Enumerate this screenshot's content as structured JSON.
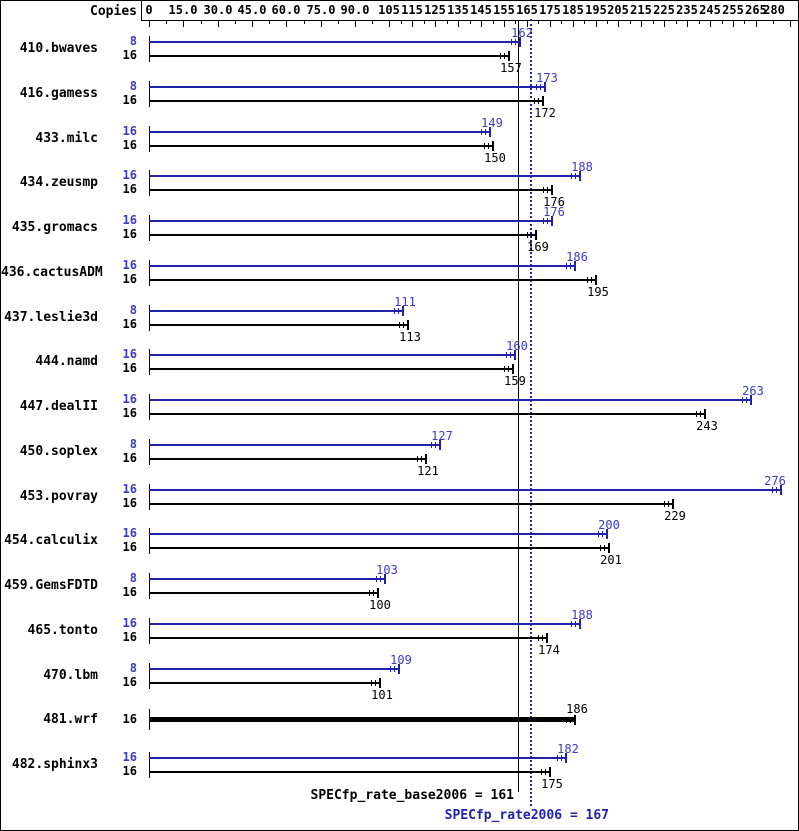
{
  "header": {
    "copies_label": "Copies"
  },
  "colors": {
    "peak_bar": "#2222a8",
    "peak_text": "#3c3cc0",
    "base_bar": "#000000",
    "base_text": "#000000",
    "background": "#ffffff"
  },
  "chart_data": {
    "type": "bar",
    "orientation": "horizontal",
    "grid": false,
    "xlim": [
      0,
      284
    ],
    "axis_ticks": [
      {
        "v": 0,
        "label": "0"
      },
      {
        "v": 15,
        "label": "15.0"
      },
      {
        "v": 30,
        "label": "30.0"
      },
      {
        "v": 45,
        "label": "45.0"
      },
      {
        "v": 60,
        "label": "60.0"
      },
      {
        "v": 75,
        "label": "75.0"
      },
      {
        "v": 90,
        "label": "90.0"
      },
      {
        "v": 105,
        "label": "105"
      },
      {
        "v": 115,
        "label": "115"
      },
      {
        "v": 125,
        "label": "125"
      },
      {
        "v": 135,
        "label": "135"
      },
      {
        "v": 145,
        "label": "145"
      },
      {
        "v": 155,
        "label": "155"
      },
      {
        "v": 165,
        "label": "165"
      },
      {
        "v": 175,
        "label": "175"
      },
      {
        "v": 185,
        "label": "185"
      },
      {
        "v": 195,
        "label": "195"
      },
      {
        "v": 205,
        "label": "205"
      },
      {
        "v": 215,
        "label": "215"
      },
      {
        "v": 225,
        "label": "225"
      },
      {
        "v": 235,
        "label": "235"
      },
      {
        "v": 245,
        "label": "245"
      },
      {
        "v": 255,
        "label": "255"
      },
      {
        "v": 265,
        "label": "265"
      },
      {
        "v": 280,
        "label": "280"
      }
    ],
    "benchmarks": [
      {
        "name": "410.bwaves",
        "results": [
          {
            "series": "peak",
            "copies": "8",
            "value": 162
          },
          {
            "series": "base",
            "copies": "16",
            "value": 157
          }
        ]
      },
      {
        "name": "416.gamess",
        "results": [
          {
            "series": "peak",
            "copies": "8",
            "value": 173
          },
          {
            "series": "base",
            "copies": "16",
            "value": 172
          }
        ]
      },
      {
        "name": "433.milc",
        "results": [
          {
            "series": "peak",
            "copies": "16",
            "value": 149
          },
          {
            "series": "base",
            "copies": "16",
            "value": 150
          }
        ]
      },
      {
        "name": "434.zeusmp",
        "results": [
          {
            "series": "peak",
            "copies": "16",
            "value": 188
          },
          {
            "series": "base",
            "copies": "16",
            "value": 176
          }
        ]
      },
      {
        "name": "435.gromacs",
        "results": [
          {
            "series": "peak",
            "copies": "16",
            "value": 176
          },
          {
            "series": "base",
            "copies": "16",
            "value": 169
          }
        ]
      },
      {
        "name": "436.cactusADM",
        "results": [
          {
            "series": "peak",
            "copies": "16",
            "value": 186
          },
          {
            "series": "base",
            "copies": "16",
            "value": 195
          }
        ]
      },
      {
        "name": "437.leslie3d",
        "results": [
          {
            "series": "peak",
            "copies": "8",
            "value": 111
          },
          {
            "series": "base",
            "copies": "16",
            "value": 113
          }
        ]
      },
      {
        "name": "444.namd",
        "results": [
          {
            "series": "peak",
            "copies": "16",
            "value": 160
          },
          {
            "series": "base",
            "copies": "16",
            "value": 159
          }
        ]
      },
      {
        "name": "447.dealII",
        "results": [
          {
            "series": "peak",
            "copies": "16",
            "value": 263
          },
          {
            "series": "base",
            "copies": "16",
            "value": 243
          }
        ]
      },
      {
        "name": "450.soplex",
        "results": [
          {
            "series": "peak",
            "copies": "8",
            "value": 127
          },
          {
            "series": "base",
            "copies": "16",
            "value": 121
          }
        ]
      },
      {
        "name": "453.povray",
        "results": [
          {
            "series": "peak",
            "copies": "16",
            "value": 276
          },
          {
            "series": "base",
            "copies": "16",
            "value": 229
          }
        ]
      },
      {
        "name": "454.calculix",
        "results": [
          {
            "series": "peak",
            "copies": "16",
            "value": 200
          },
          {
            "series": "base",
            "copies": "16",
            "value": 201
          }
        ]
      },
      {
        "name": "459.GemsFDTD",
        "results": [
          {
            "series": "peak",
            "copies": "8",
            "value": 103
          },
          {
            "series": "base",
            "copies": "16",
            "value": 100
          }
        ]
      },
      {
        "name": "465.tonto",
        "results": [
          {
            "series": "peak",
            "copies": "16",
            "value": 188
          },
          {
            "series": "base",
            "copies": "16",
            "value": 174
          }
        ]
      },
      {
        "name": "470.lbm",
        "results": [
          {
            "series": "peak",
            "copies": "8",
            "value": 109
          },
          {
            "series": "base",
            "copies": "16",
            "value": 101
          }
        ]
      },
      {
        "name": "481.wrf",
        "results": [
          {
            "series": "base",
            "copies": "16",
            "value": 186
          }
        ]
      },
      {
        "name": "482.sphinx3",
        "results": [
          {
            "series": "peak",
            "copies": "16",
            "value": 182
          },
          {
            "series": "base",
            "copies": "16",
            "value": 175
          }
        ]
      }
    ],
    "reference_lines": [
      {
        "series": "base",
        "value": 161,
        "label": "SPECfp_rate_base2006 = 161"
      },
      {
        "series": "peak",
        "value": 167,
        "label": "SPECfp_rate2006 = 167"
      }
    ]
  }
}
